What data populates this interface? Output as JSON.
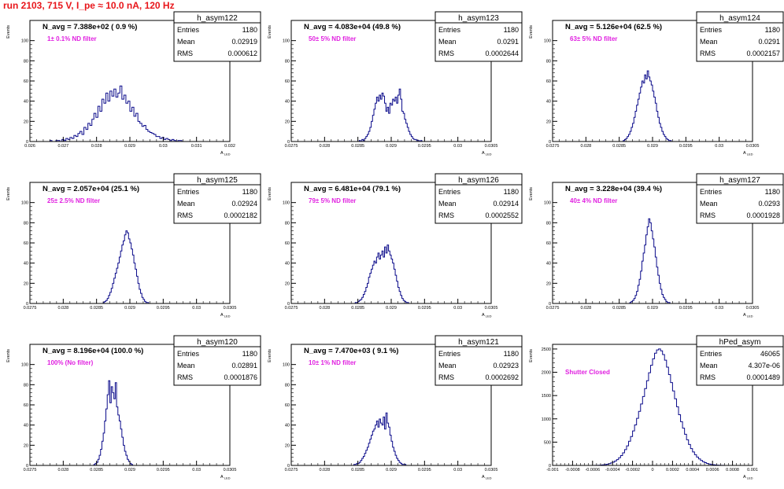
{
  "header": {
    "run_title": "run 2103,   715 V, I_pe ≈ 10.0 nA, 120 Hz"
  },
  "colors": {
    "title": "#e8161b",
    "note": "#e020e0",
    "hist": "#0a0a8a",
    "frame": "#000000"
  },
  "chart_data": [
    {
      "type": "histogram",
      "name": "h_asym122",
      "stats": {
        "entries_label": "Entries",
        "entries": "1180",
        "mean_label": "Mean",
        "mean": "0.02919",
        "rms_label": "RMS",
        "rms": "0.000612"
      },
      "navg_label": "N_avg = 7.388e+02 ( 0.9 %)",
      "note": "1± 0.1% ND filter",
      "ylabel": "Events",
      "xlabel": "A_LED",
      "xlim": [
        0.026,
        0.032
      ],
      "ylim": [
        0,
        120
      ],
      "xticks": [
        0.026,
        0.027,
        0.028,
        0.029,
        0.03,
        0.031,
        0.032
      ],
      "xtick_labels": [
        "0.026",
        "0.027",
        "0.028",
        "0.029",
        "0.03",
        "0.031",
        "0.032"
      ],
      "yticks": [
        0,
        20,
        40,
        60,
        80,
        100
      ],
      "ytick_labels": [
        "0",
        "20",
        "40",
        "60",
        "80",
        "100"
      ],
      "x_start": 0.0266,
      "bin_width": 6e-05,
      "counts": [
        1,
        0,
        0,
        1,
        1,
        0,
        2,
        1,
        3,
        2,
        4,
        3,
        6,
        5,
        8,
        10,
        7,
        14,
        12,
        18,
        16,
        22,
        28,
        24,
        35,
        30,
        42,
        38,
        48,
        40,
        50,
        45,
        52,
        44,
        48,
        55,
        42,
        46,
        38,
        40,
        30,
        34,
        25,
        28,
        20,
        18,
        15,
        16,
        12,
        10,
        9,
        8,
        7,
        5,
        5,
        3,
        4,
        2,
        3,
        2,
        1,
        2,
        1,
        0,
        1,
        1
      ]
    },
    {
      "type": "histogram",
      "name": "h_asym123",
      "stats": {
        "entries_label": "Entries",
        "entries": "1180",
        "mean_label": "Mean",
        "mean": "0.0291",
        "rms_label": "RMS",
        "rms": "0.0002644"
      },
      "navg_label": "N_avg = 4.083e+04 (49.8 %)",
      "note": "50± 5% ND filter",
      "ylabel": "Events",
      "xlabel": "A_LED",
      "xlim": [
        0.0275,
        0.0305
      ],
      "ylim": [
        0,
        120
      ],
      "xticks": [
        0.0275,
        0.028,
        0.0285,
        0.029,
        0.0295,
        0.03,
        0.0305
      ],
      "xtick_labels": [
        "0.0275",
        "0.028",
        "0.0285",
        "0.029",
        "0.0295",
        "0.03",
        "0.0305"
      ],
      "yticks": [
        0,
        20,
        40,
        60,
        80,
        100
      ],
      "ytick_labels": [
        "0",
        "20",
        "40",
        "60",
        "80",
        "100"
      ],
      "x_start": 0.02852,
      "bin_width": 2e-05,
      "counts": [
        1,
        0,
        2,
        1,
        3,
        5,
        7,
        10,
        14,
        20,
        26,
        32,
        38,
        44,
        40,
        46,
        42,
        48,
        45,
        38,
        30,
        34,
        28,
        38,
        36,
        42,
        40,
        44,
        38,
        46,
        52,
        42,
        30,
        28,
        22,
        18,
        14,
        10,
        7,
        5,
        3,
        2,
        2,
        1,
        1,
        0,
        1
      ]
    },
    {
      "type": "histogram",
      "name": "h_asym124",
      "stats": {
        "entries_label": "Entries",
        "entries": "1180",
        "mean_label": "Mean",
        "mean": "0.0291",
        "rms_label": "RMS",
        "rms": "0.0002157"
      },
      "navg_label": "N_avg = 5.126e+04 (62.5 %)",
      "note": "63± 5% ND filter",
      "ylabel": "Events",
      "xlabel": "A_LED",
      "xlim": [
        0.0275,
        0.0305
      ],
      "ylim": [
        0,
        120
      ],
      "xticks": [
        0.0275,
        0.028,
        0.0285,
        0.029,
        0.0295,
        0.03,
        0.0305
      ],
      "xtick_labels": [
        "0.0275",
        "0.028",
        "0.0285",
        "0.029",
        "0.0295",
        "0.03",
        "0.0305"
      ],
      "yticks": [
        0,
        20,
        40,
        60,
        80,
        100
      ],
      "ytick_labels": [
        "0",
        "20",
        "40",
        "60",
        "80",
        "100"
      ],
      "x_start": 0.02856,
      "bin_width": 2e-05,
      "counts": [
        1,
        2,
        3,
        5,
        7,
        10,
        14,
        18,
        24,
        30,
        36,
        42,
        48,
        54,
        60,
        58,
        66,
        62,
        70,
        64,
        60,
        56,
        50,
        44,
        38,
        30,
        24,
        18,
        14,
        10,
        7,
        5,
        3,
        2,
        1,
        1
      ]
    },
    {
      "type": "histogram",
      "name": "h_asym125",
      "stats": {
        "entries_label": "Entries",
        "entries": "1180",
        "mean_label": "Mean",
        "mean": "0.02924",
        "rms_label": "RMS",
        "rms": "0.0002182"
      },
      "navg_label": "N_avg = 2.057e+04 (25.1 %)",
      "note": "25± 2.5% ND filter",
      "ylabel": "Events",
      "xlabel": "A_LED",
      "xlim": [
        0.0275,
        0.0305
      ],
      "ylim": [
        0,
        120
      ],
      "xticks": [
        0.0275,
        0.028,
        0.0285,
        0.029,
        0.0295,
        0.03,
        0.0305
      ],
      "xtick_labels": [
        "0.0275",
        "0.028",
        "0.0285",
        "0.029",
        "0.0295",
        "0.03",
        "0.0305"
      ],
      "yticks": [
        0,
        20,
        40,
        60,
        80,
        100
      ],
      "ytick_labels": [
        "0",
        "20",
        "40",
        "60",
        "80",
        "100"
      ],
      "x_start": 0.0286,
      "bin_width": 2e-05,
      "counts": [
        1,
        2,
        3,
        5,
        8,
        11,
        15,
        20,
        25,
        30,
        35,
        40,
        46,
        52,
        58,
        62,
        68,
        72,
        70,
        64,
        60,
        54,
        48,
        40,
        34,
        27,
        20,
        14,
        10,
        6,
        4,
        2,
        1,
        1
      ]
    },
    {
      "type": "histogram",
      "name": "h_asym126",
      "stats": {
        "entries_label": "Entries",
        "entries": "1180",
        "mean_label": "Mean",
        "mean": "0.02914",
        "rms_label": "RMS",
        "rms": "0.0002552"
      },
      "navg_label": "N_avg = 6.481e+04 (79.1 %)",
      "note": "79± 5% ND filter",
      "ylabel": "Events",
      "xlabel": "A_LED",
      "xlim": [
        0.0275,
        0.0305
      ],
      "ylim": [
        0,
        120
      ],
      "xticks": [
        0.0275,
        0.028,
        0.0285,
        0.029,
        0.0295,
        0.03,
        0.0305
      ],
      "xtick_labels": [
        "0.0275",
        "0.028",
        "0.0285",
        "0.029",
        "0.0295",
        "0.03",
        "0.0305"
      ],
      "yticks": [
        0,
        20,
        40,
        60,
        80,
        100
      ],
      "ytick_labels": [
        "0",
        "20",
        "40",
        "60",
        "80",
        "100"
      ],
      "x_start": 0.02846,
      "bin_width": 2e-05,
      "counts": [
        1,
        1,
        2,
        3,
        4,
        6,
        9,
        12,
        16,
        20,
        26,
        30,
        34,
        38,
        42,
        40,
        46,
        50,
        44,
        48,
        52,
        46,
        56,
        50,
        58,
        52,
        48,
        44,
        40,
        34,
        28,
        22,
        16,
        12,
        8,
        5,
        3,
        2,
        1,
        1
      ]
    },
    {
      "type": "histogram",
      "name": "h_asym127",
      "stats": {
        "entries_label": "Entries",
        "entries": "1180",
        "mean_label": "Mean",
        "mean": "0.0293",
        "rms_label": "RMS",
        "rms": "0.0001928"
      },
      "navg_label": "N_avg = 3.228e+04 (39.4 %)",
      "note": "40± 4% ND filter",
      "ylabel": "Events",
      "xlabel": "A_LED",
      "xlim": [
        0.0275,
        0.0305
      ],
      "ylim": [
        0,
        120
      ],
      "xticks": [
        0.0275,
        0.028,
        0.0285,
        0.029,
        0.0295,
        0.03,
        0.0305
      ],
      "xtick_labels": [
        "0.0275",
        "0.028",
        "0.0285",
        "0.029",
        "0.0295",
        "0.03",
        "0.0305"
      ],
      "yticks": [
        0,
        20,
        40,
        60,
        80,
        100
      ],
      "ytick_labels": [
        "0",
        "20",
        "40",
        "60",
        "80",
        "100"
      ],
      "x_start": 0.02866,
      "bin_width": 2e-05,
      "counts": [
        1,
        2,
        3,
        5,
        8,
        12,
        18,
        24,
        32,
        42,
        50,
        58,
        68,
        76,
        84,
        80,
        72,
        64,
        56,
        46,
        36,
        28,
        20,
        14,
        9,
        6,
        4,
        2,
        1,
        1
      ]
    },
    {
      "type": "histogram",
      "name": "h_asym120",
      "stats": {
        "entries_label": "Entries",
        "entries": "1180",
        "mean_label": "Mean",
        "mean": "0.02891",
        "rms_label": "RMS",
        "rms": "0.0001876"
      },
      "navg_label": "N_avg = 8.196e+04 (100.0 %)",
      "note": "100% (No filter)",
      "ylabel": "Events",
      "xlabel": "A_LED",
      "xlim": [
        0.0275,
        0.0305
      ],
      "ylim": [
        0,
        120
      ],
      "xticks": [
        0.0275,
        0.028,
        0.0285,
        0.029,
        0.0295,
        0.03,
        0.0305
      ],
      "xtick_labels": [
        "0.0275",
        "0.028",
        "0.0285",
        "0.029",
        "0.0295",
        "0.03",
        "0.0305"
      ],
      "yticks": [
        0,
        20,
        40,
        60,
        80,
        100
      ],
      "ytick_labels": [
        "0",
        "20",
        "40",
        "60",
        "80",
        "100"
      ],
      "x_start": 0.02846,
      "bin_width": 2e-05,
      "counts": [
        1,
        2,
        3,
        6,
        10,
        16,
        24,
        32,
        44,
        56,
        70,
        84,
        62,
        78,
        72,
        66,
        82,
        58,
        50,
        44,
        36,
        28,
        20,
        14,
        10,
        6,
        4,
        2,
        1
      ]
    },
    {
      "type": "histogram",
      "name": "h_asym121",
      "stats": {
        "entries_label": "Entries",
        "entries": "1180",
        "mean_label": "Mean",
        "mean": "0.02923",
        "rms_label": "RMS",
        "rms": "0.0002692"
      },
      "navg_label": "N_avg = 7.470e+03 ( 9.1 %)",
      "note": "10± 1% ND filter",
      "ylabel": "Events",
      "xlabel": "A_LED",
      "xlim": [
        0.0275,
        0.0305
      ],
      "ylim": [
        0,
        120
      ],
      "xticks": [
        0.0275,
        0.028,
        0.0285,
        0.029,
        0.0295,
        0.03,
        0.0305
      ],
      "xtick_labels": [
        "0.0275",
        "0.028",
        "0.0285",
        "0.029",
        "0.0295",
        "0.03",
        "0.0305"
      ],
      "yticks": [
        0,
        20,
        40,
        60,
        80,
        100
      ],
      "ytick_labels": [
        "0",
        "20",
        "40",
        "60",
        "80",
        "100"
      ],
      "x_start": 0.02844,
      "bin_width": 2e-05,
      "counts": [
        1,
        1,
        2,
        2,
        3,
        5,
        7,
        9,
        12,
        15,
        18,
        22,
        26,
        30,
        34,
        36,
        40,
        44,
        38,
        46,
        42,
        40,
        48,
        36,
        52,
        42,
        38,
        30,
        24,
        18,
        14,
        10,
        7,
        5,
        3,
        2,
        1,
        1,
        1
      ]
    },
    {
      "type": "histogram",
      "name": "hPed_asym",
      "stats": {
        "entries_label": "Entries",
        "entries": "46065",
        "mean_label": "Mean",
        "mean": "4.307e-06",
        "rms_label": "RMS",
        "rms": "0.0001489"
      },
      "navg_label": "",
      "note": "Shutter Closed",
      "ylabel": "Events",
      "xlabel": "A_LED",
      "xlim": [
        -0.001,
        0.001
      ],
      "ylim": [
        0,
        2600
      ],
      "xticks": [
        -0.001,
        -0.0008,
        -0.0006,
        -0.0004,
        -0.0002,
        0,
        0.0002,
        0.0004,
        0.0006,
        0.0008,
        0.001
      ],
      "xtick_labels": [
        "-0.001",
        "-0.0008",
        "-0.0006",
        "-0.0004",
        "-0.0002",
        "0",
        "0.0002",
        "0.0004",
        "0.0006",
        "0.0008",
        "0.001"
      ],
      "yticks": [
        0,
        500,
        1000,
        1500,
        2000,
        2500
      ],
      "ytick_labels": [
        "0",
        "500",
        "1000",
        "1500",
        "2000",
        "2500"
      ],
      "x_start": -0.0006,
      "bin_width": 2e-05,
      "counts": [
        1,
        2,
        3,
        5,
        8,
        12,
        18,
        26,
        38,
        52,
        70,
        95,
        125,
        165,
        210,
        270,
        340,
        420,
        520,
        620,
        740,
        870,
        1010,
        1160,
        1320,
        1480,
        1650,
        1820,
        1990,
        2150,
        2290,
        2410,
        2480,
        2500,
        2460,
        2380,
        2260,
        2110,
        1950,
        1780,
        1600,
        1430,
        1260,
        1090,
        940,
        800,
        670,
        550,
        450,
        360,
        290,
        230,
        180,
        140,
        105,
        80,
        58,
        42,
        30,
        21,
        14,
        10,
        7,
        5,
        3,
        2
      ]
    }
  ]
}
